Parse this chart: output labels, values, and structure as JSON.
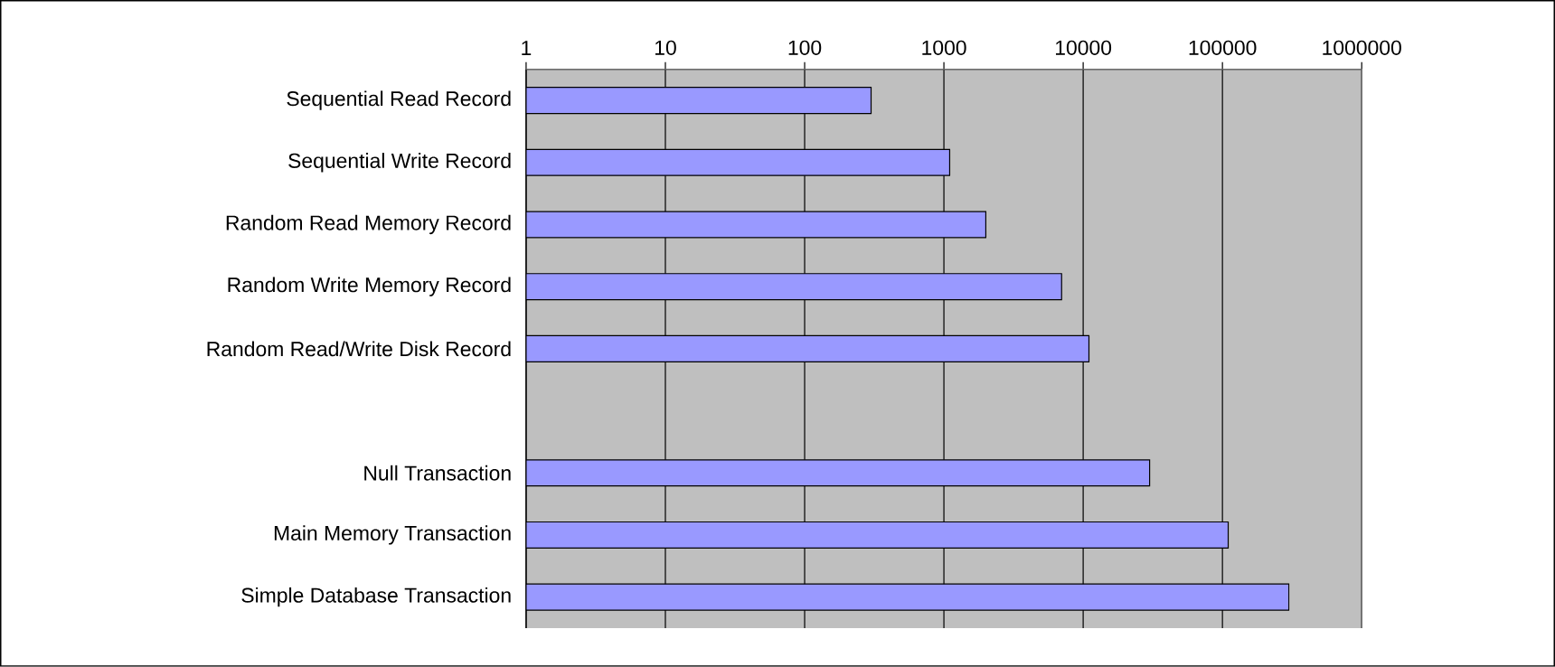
{
  "chart_data": {
    "type": "bar",
    "orientation": "horizontal",
    "log": "x",
    "categories": [
      "Sequential Read Record",
      "Sequential Write Record",
      "Random Read Memory Record",
      "Random Write Memory Record",
      "Random Read/Write Disk Record",
      null,
      "Null Transaction",
      "Main Memory Transaction",
      "Simple Database Transaction"
    ],
    "values": [
      300,
      1100,
      2000,
      7000,
      11000,
      null,
      30000,
      110000,
      300000
    ],
    "color": "#9999ff",
    "xlim": [
      1,
      1000000
    ],
    "xticks": [
      1,
      10,
      100,
      1000,
      10000,
      100000,
      1000000
    ],
    "grid": "x"
  }
}
